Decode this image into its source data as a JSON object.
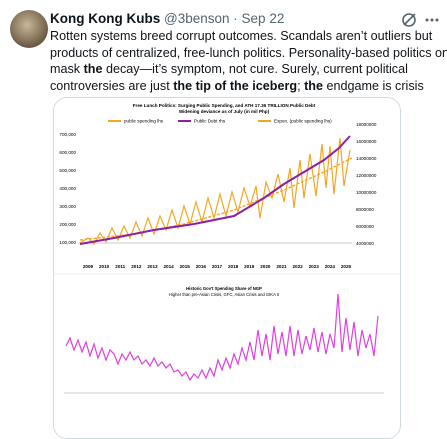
{
  "tweet": {
    "author": {
      "name": "Kong Kong Kubs",
      "handle": "@3benson",
      "separator": "·",
      "date": "Sep 22"
    },
    "lines": [
      [
        {
          "text": "Rotten systems breed corrupt outcomes. Scandals aren’t outliers but",
          "bold": false
        }
      ],
      [
        {
          "text": "products of centralized, free-lunch politics. Personality-based politics only",
          "bold": false
        }
      ],
      [
        {
          "text": "mask ",
          "bold": false
        },
        {
          "text": "the",
          "bold": true
        },
        {
          "text": " decay—it’s symptom, not cure. Surely, current political",
          "bold": false
        }
      ],
      [
        {
          "text": "controversies are just ",
          "bold": false
        },
        {
          "text": "the tip of the iceberg",
          "bold": true
        },
        {
          "text": "; ",
          "bold": false
        },
        {
          "text": "the",
          "bold": true
        },
        {
          "text": " endgame is crisis",
          "bold": false
        }
      ]
    ]
  },
  "image": {
    "chart1": {
      "title": "Free Lunch Politics: Surging Public Spending, and ATH 17.36 TRILLION Public Debt",
      "subtitle": "Widening deviance as of July (in mil Php)",
      "legend": [
        "public spending lhs",
        "Public Debt rhs",
        "Expon. (public spending lhs)"
      ],
      "left_ticks": [
        "700,000",
        "600,000",
        "500,000",
        "400,000",
        "300,000",
        "200,000",
        "100,000"
      ],
      "right_ticks": [
        "18000000",
        "16000000",
        "14000000",
        "12000000",
        "10000000",
        "8000000",
        "6000000",
        "4000000"
      ],
      "years": [
        "2009",
        "2010",
        "2011",
        "2012",
        "2013",
        "2014",
        "2015",
        "2016",
        "2017",
        "2018",
        "2019",
        "2020",
        "2021",
        "2022",
        "2023",
        "2024",
        "2025"
      ]
    },
    "chart2": {
      "title": "Historic Gov't Spending Share of NGP",
      "subtitle": "Higher than pre-Asian Crisis, GFC, Asian Crisis and GIKA II"
    }
  }
}
